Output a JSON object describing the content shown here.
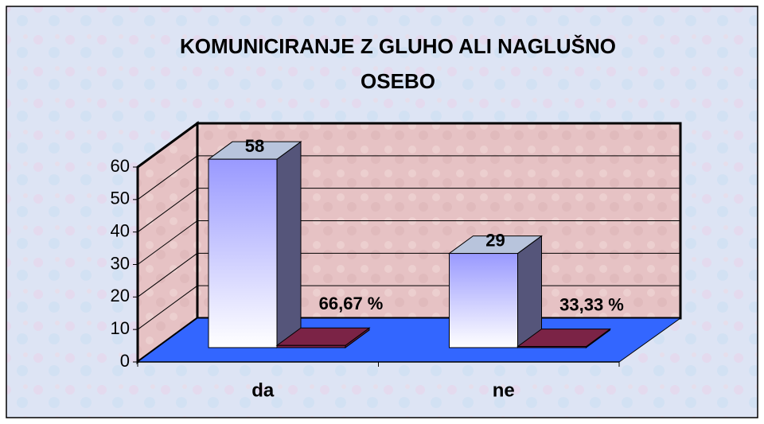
{
  "chart_data": {
    "type": "bar3d",
    "title": "KOMUNICIRANJE Z GLUHO ALI NAGLUŠNO OSEBO",
    "categories": [
      "da",
      "ne"
    ],
    "series": [
      {
        "color": "#9999ff",
        "values": [
          58,
          29
        ]
      },
      {
        "color": "#7b2346",
        "values": [
          0.6667,
          0.3333
        ],
        "value_labels": [
          "66,67 %",
          "33,33 %"
        ]
      }
    ],
    "ylim": [
      0,
      60
    ],
    "yticks": [
      0,
      10,
      20,
      30,
      40,
      50,
      60
    ],
    "grid": true
  }
}
